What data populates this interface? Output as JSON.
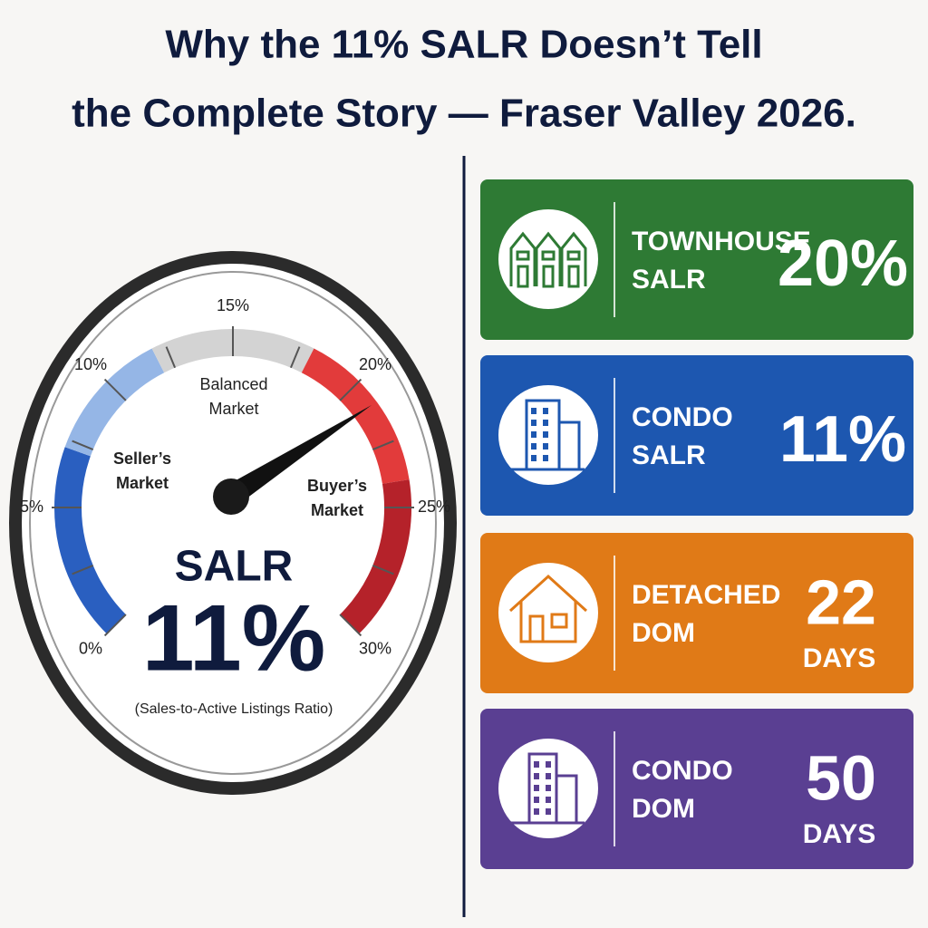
{
  "title": [
    "Why the 11% SALR Doesn’t Tell",
    "the Complete Story — Fraser Valley 2026."
  ],
  "gauge": {
    "ticks": [
      "0%",
      "5%",
      "10%",
      "15%",
      "20%",
      "25%",
      "30%"
    ],
    "balanced": [
      "Balanced",
      "Market"
    ],
    "seller": [
      "Seller’s",
      "Market"
    ],
    "buyer": [
      "Buyer’s",
      "Market"
    ],
    "metric": "SALR",
    "value": "11%",
    "caption": "(Sales-to-Active Listings Ratio)"
  },
  "cards": [
    {
      "label": [
        "TOWNHOUSE",
        "SALR"
      ],
      "value": "20%"
    },
    {
      "label": [
        "CONDO",
        "SALR"
      ],
      "value": "11%"
    },
    {
      "label": [
        "DETACHED",
        "DOM"
      ],
      "value": "22",
      "unit": "DAYS"
    },
    {
      "label": [
        "CONDO",
        "DOM"
      ],
      "value": "50",
      "unit": "DAYS"
    }
  ]
}
